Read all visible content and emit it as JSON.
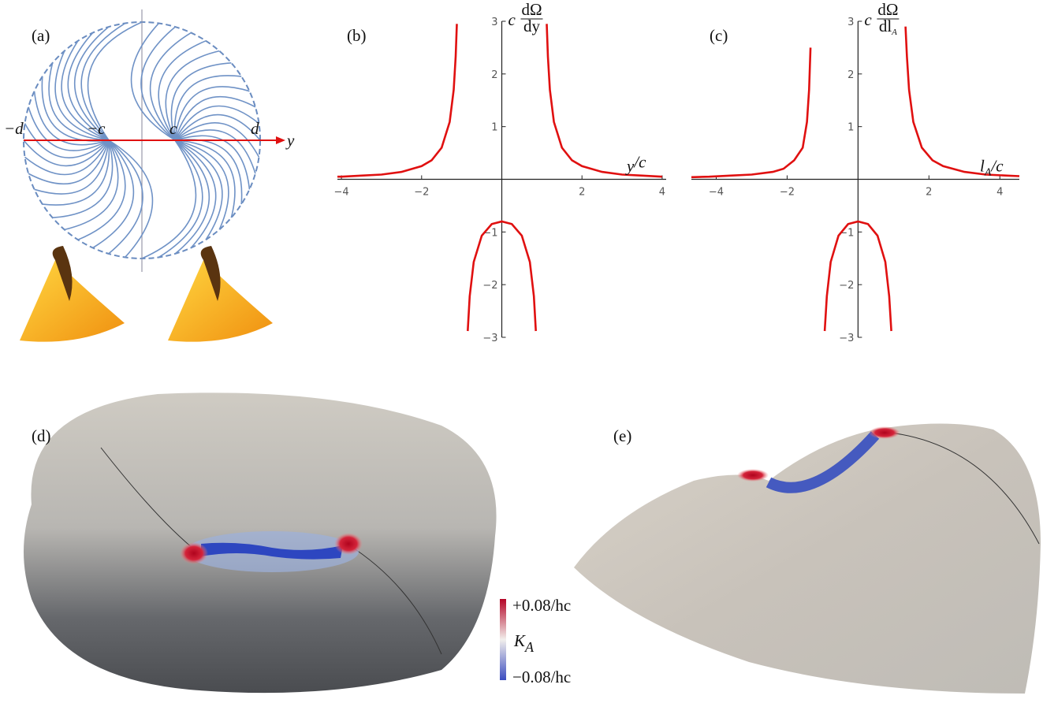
{
  "figure": {
    "panel_labels": [
      "(a)",
      "(b)",
      "(c)",
      "(d)",
      "(e)"
    ],
    "diagram_a": {
      "labels": [
        "−d",
        "−c",
        "c",
        "d"
      ],
      "axis": "y"
    },
    "colorbar": {
      "top": "+0.08/hc",
      "quantity": {
        "main": "K",
        "sub": "A"
      },
      "bottom": "−0.08/hc"
    }
  },
  "chart_data": [
    {
      "type": "line",
      "xlabel": {
        "main": "y",
        "sub": "",
        "rest": "/c"
      },
      "ylabel": {
        "prefix": "c",
        "num": "dΩ",
        "den": "dy",
        "den_sub": ""
      },
      "xlim": [
        -4.1,
        4.1
      ],
      "ylim": [
        -3,
        3
      ],
      "xticks": [
        {
          "value": -4,
          "label": "−4"
        },
        {
          "value": -2,
          "label": "−2"
        },
        2,
        4
      ],
      "yticks": [
        {
          "value": -3,
          "label": "−3"
        },
        {
          "value": -2,
          "label": "−2"
        },
        {
          "value": -1,
          "label": "−1"
        },
        1,
        2,
        3
      ],
      "series": [
        {
          "color": "#e01010",
          "x": [
            -4.1,
            -4,
            -3.5,
            -3,
            -2.5,
            -2,
            -1.75,
            -1.5,
            -1.3,
            -1.2,
            -1.15,
            -1.12,
            -1,
            -0.85,
            -0.8,
            -0.7,
            -0.5,
            -0.25,
            0,
            0.25,
            0.5,
            0.7,
            0.8,
            0.85,
            1,
            1.12,
            1.15,
            1.2,
            1.3,
            1.5,
            1.75,
            2,
            2.5,
            3,
            3.5,
            4
          ],
          "values": [
            0.05,
            0.05,
            0.07,
            0.09,
            0.14,
            0.25,
            0.36,
            0.6,
            1.09,
            1.7,
            2.33,
            2.95,
            null,
            -2.88,
            -2.22,
            -1.57,
            -1.07,
            -0.85,
            -0.8,
            -0.85,
            -1.07,
            -1.57,
            -2.22,
            -2.88,
            null,
            2.95,
            2.33,
            1.7,
            1.09,
            0.6,
            0.36,
            0.25,
            0.14,
            0.09,
            0.07,
            0.05
          ]
        }
      ]
    },
    {
      "type": "line",
      "xlabel": {
        "main": "l",
        "sub": "A",
        "rest": "/c"
      },
      "ylabel": {
        "prefix": "c",
        "num": "dΩ",
        "den": "dl",
        "den_sub": "A"
      },
      "xlim": [
        -4.7,
        4.55
      ],
      "ylim": [
        -3,
        3
      ],
      "xticks": [
        {
          "value": -4,
          "label": "−4"
        },
        {
          "value": -2,
          "label": "−2"
        },
        2,
        4
      ],
      "yticks": [
        {
          "value": -3,
          "label": "−3"
        },
        {
          "value": -2,
          "label": "−2"
        },
        {
          "value": -1,
          "label": "−1"
        },
        1,
        2,
        3
      ],
      "series": [
        {
          "color": "#e01010",
          "x": [
            -4.7,
            -4.2,
            -3.6,
            -3,
            -2.4,
            -2.1,
            -1.8,
            -1.56,
            -1.44,
            -1.38,
            -1.34,
            -1.2,
            -0.94,
            -0.88,
            -0.77,
            -0.55,
            -0.28,
            0,
            0.28,
            0.55,
            0.77,
            0.88,
            0.94,
            1.2,
            1.34,
            1.38,
            1.44,
            1.56,
            1.8,
            2.1,
            2.4,
            3,
            3.6,
            4.2,
            4.55
          ],
          "values": [
            0.04,
            0.05,
            0.07,
            0.09,
            0.14,
            0.2,
            0.36,
            0.6,
            1.09,
            1.7,
            2.5,
            null,
            -2.88,
            -2.22,
            -1.57,
            -1.07,
            -0.85,
            -0.8,
            -0.85,
            -1.07,
            -1.57,
            -2.22,
            -2.88,
            null,
            2.9,
            2.33,
            1.7,
            1.09,
            0.6,
            0.36,
            0.25,
            0.14,
            0.09,
            0.07,
            0.06
          ]
        }
      ]
    }
  ]
}
